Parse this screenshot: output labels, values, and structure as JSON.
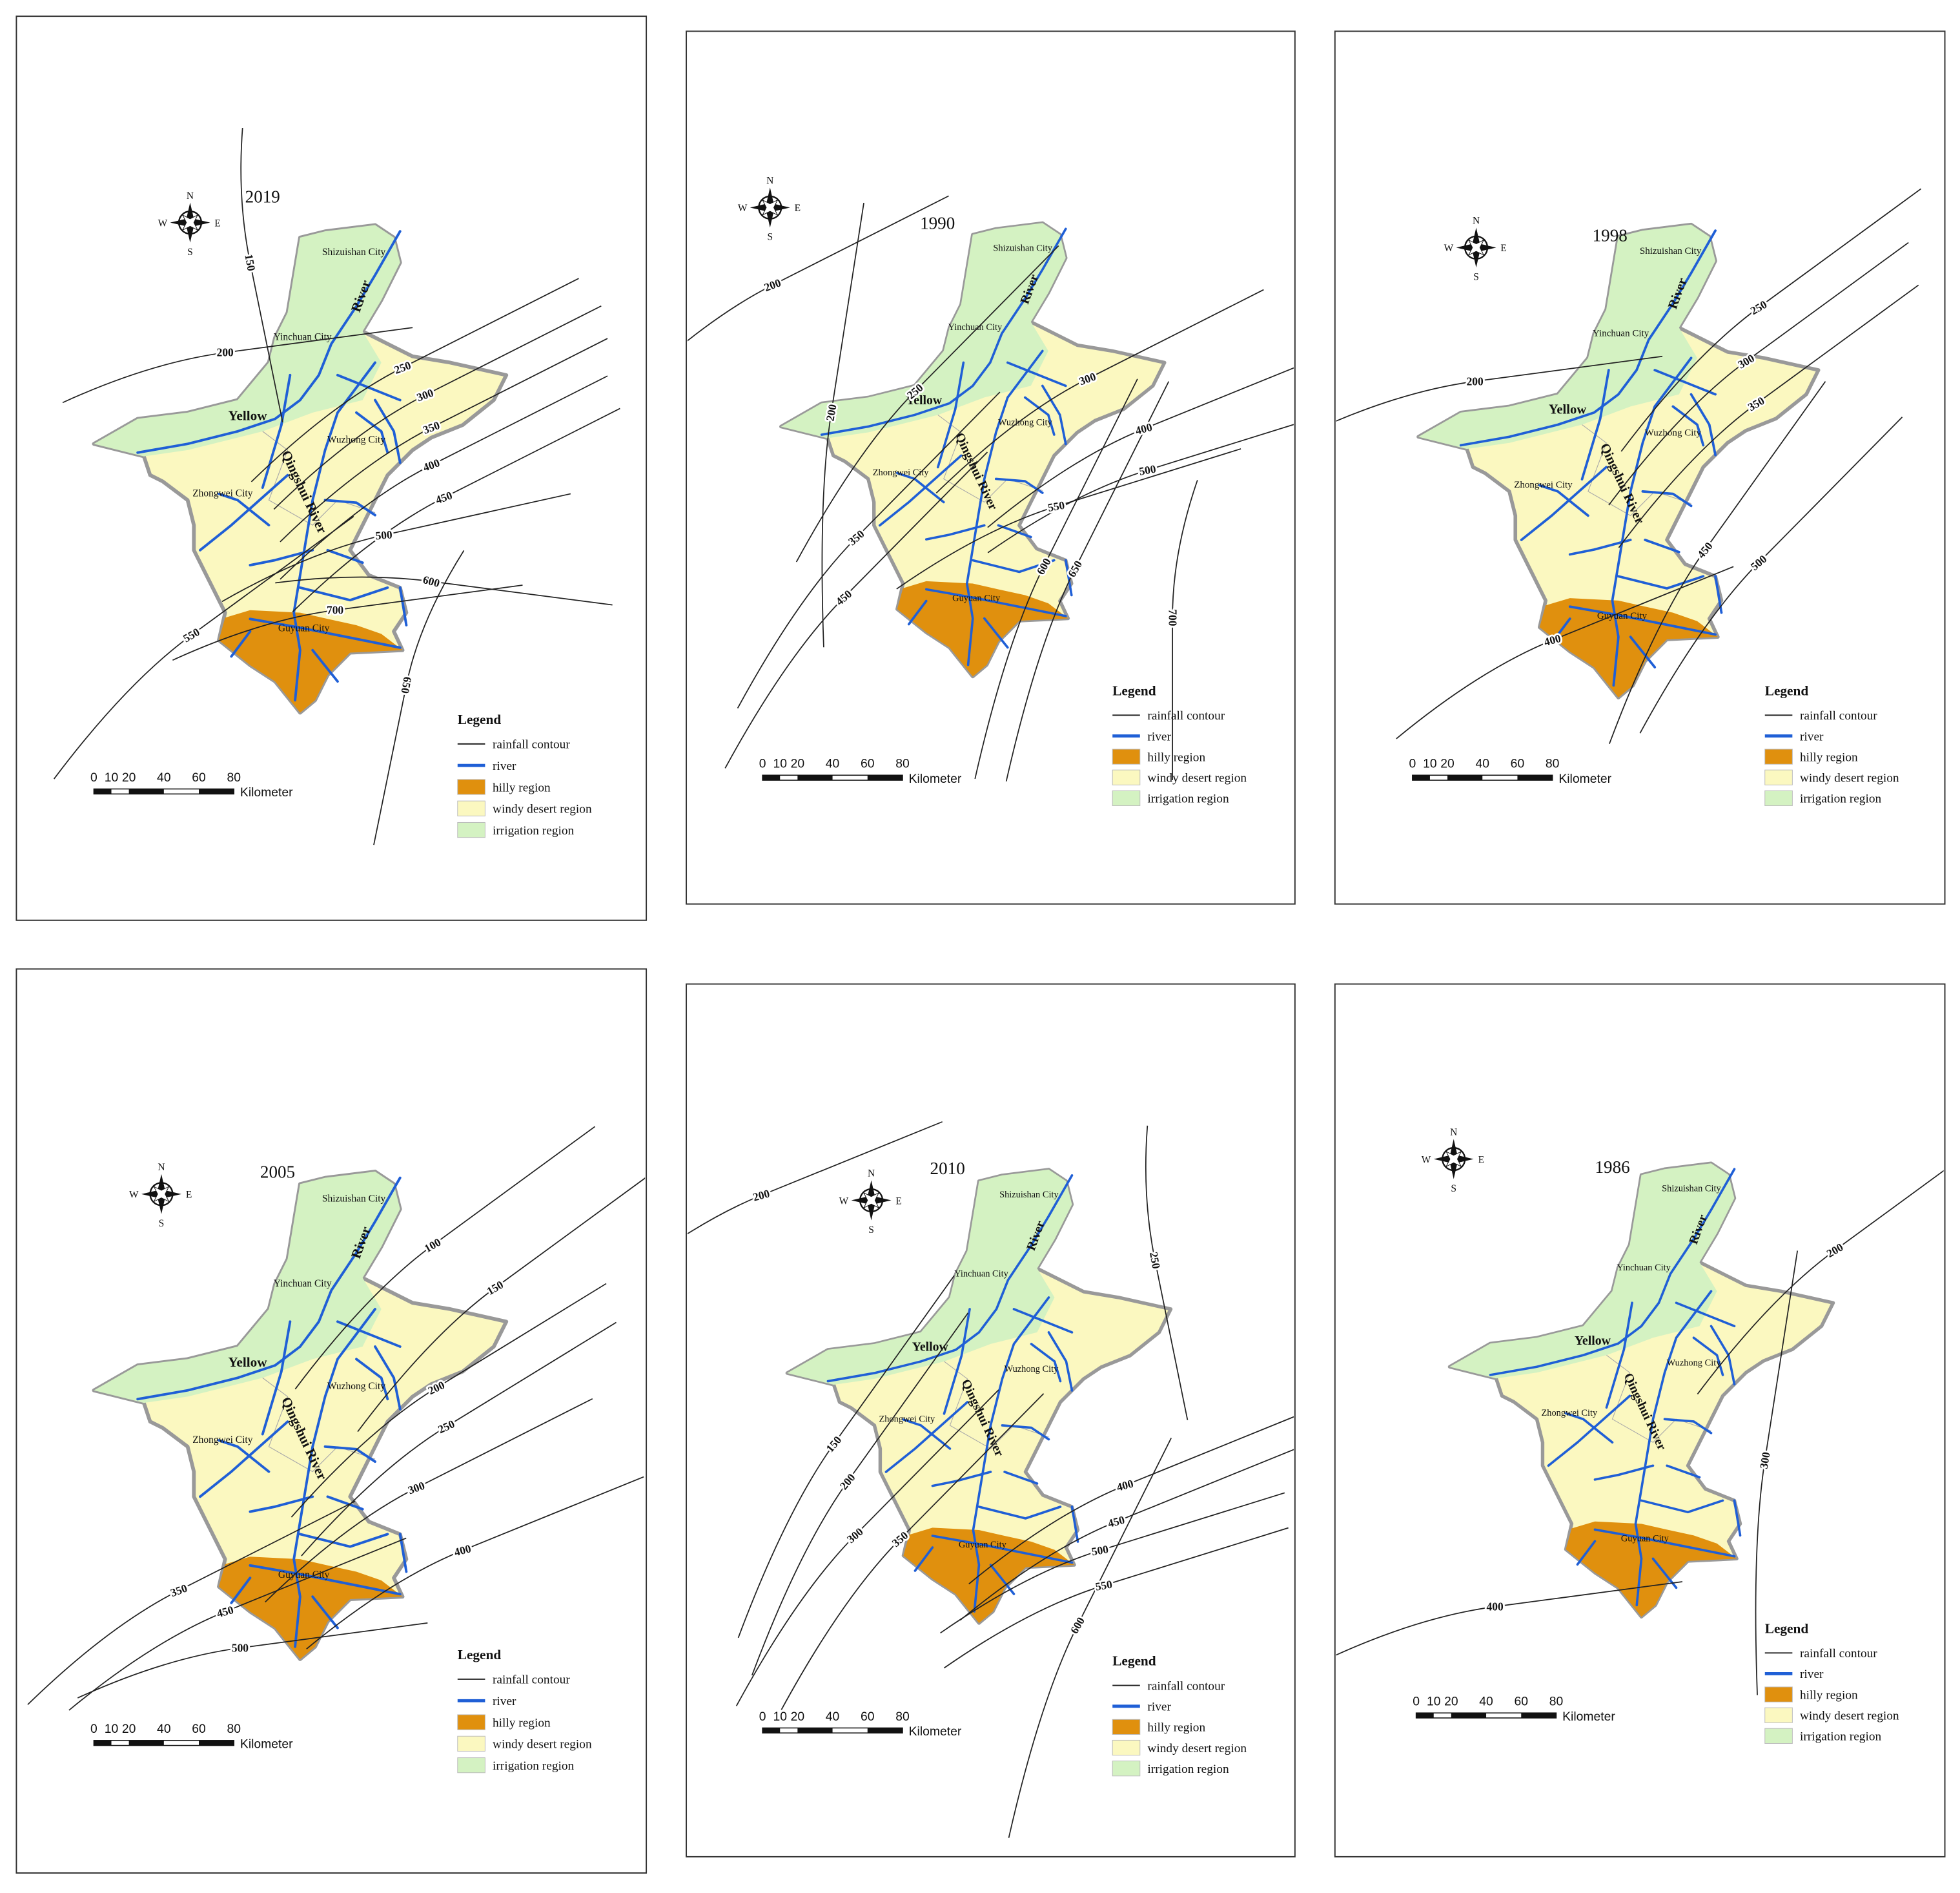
{
  "panels": [
    {
      "year": "2019",
      "contours": [
        150,
        200,
        250,
        300,
        350,
        400,
        450,
        500,
        600,
        550,
        700,
        650
      ]
    },
    {
      "year": "1990",
      "contours": [
        200,
        200,
        250,
        300,
        400,
        500,
        550,
        350,
        450,
        600,
        650,
        700
      ]
    },
    {
      "year": "1998",
      "contours": [
        250,
        200,
        300,
        350,
        450,
        500,
        400
      ]
    },
    {
      "year": "2005",
      "contours": [
        100,
        150,
        200,
        250,
        300,
        400,
        350,
        450,
        500
      ]
    },
    {
      "year": "2010",
      "contours": [
        200,
        250,
        150,
        200,
        300,
        350,
        400,
        450,
        500,
        550,
        600
      ]
    },
    {
      "year": "1986",
      "contours": [
        200,
        300,
        400
      ]
    }
  ],
  "cities": [
    "Shizuishan City",
    "Yinchuan City",
    "Wuzhong City",
    "Zhongwei City",
    "Guyuan City"
  ],
  "rivers": [
    "Yellow",
    "River",
    "Qingshui River"
  ],
  "compass": {
    "n": "N",
    "s": "S",
    "e": "E",
    "w": "W"
  },
  "legend": {
    "title": "Legend",
    "items": [
      "rainfall contour",
      "river",
      "hilly region",
      "windy desert region",
      "irrigation region"
    ]
  },
  "scale": {
    "ticks": [
      0,
      10,
      20,
      40,
      60,
      80
    ],
    "unit": "Kilometer"
  }
}
